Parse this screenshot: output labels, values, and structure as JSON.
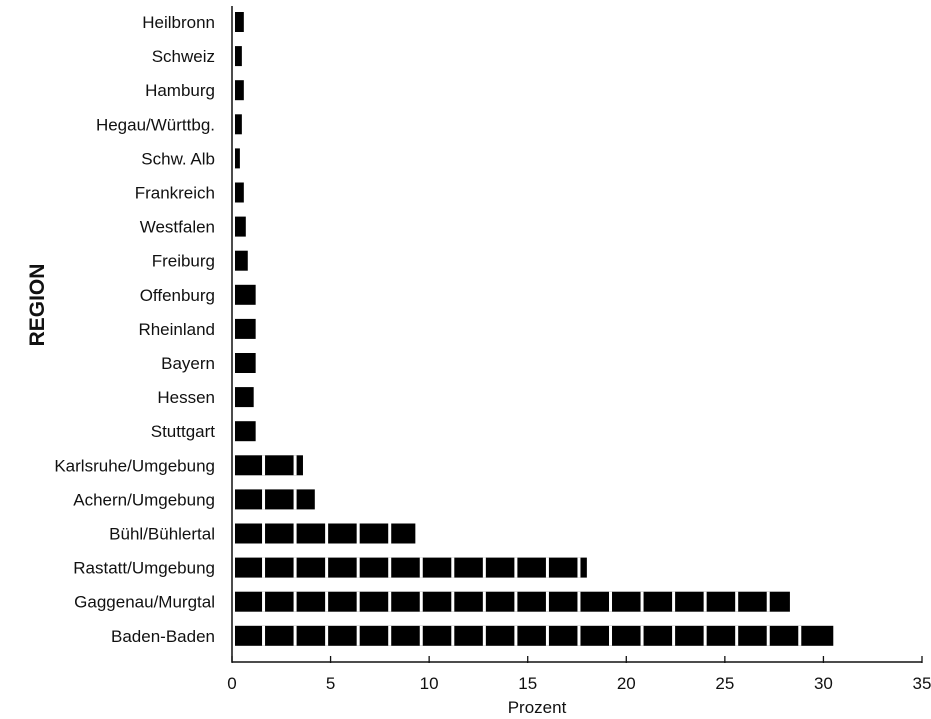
{
  "chart_data": {
    "type": "bar",
    "orientation": "horizontal",
    "categories": [
      "Heilbronn",
      "Schweiz",
      "Hamburg",
      "Hegau/Württbg.",
      "Schw. Alb",
      "Frankreich",
      "Westfalen",
      "Freiburg",
      "Offenburg",
      "Rheinland",
      "Bayern",
      "Hessen",
      "Stuttgart",
      "Karlsruhe/Umgebung",
      "Achern/Umgebung",
      "Bühl/Bühlertal",
      "Rastatt/Umgebung",
      "Gaggenau/Murgtal",
      "Baden-Baden"
    ],
    "values": [
      0.6,
      0.5,
      0.6,
      0.5,
      0.4,
      0.6,
      0.7,
      0.8,
      1.2,
      1.2,
      1.2,
      1.1,
      1.2,
      3.6,
      4.2,
      9.3,
      18.0,
      28.3,
      30.5
    ],
    "xlabel": "Prozent",
    "ylabel": "REGION",
    "xlim": [
      0,
      35
    ],
    "xticks": [
      "0",
      "5",
      "10",
      "15",
      "20",
      "25",
      "30",
      "35"
    ],
    "bar_color": "#000000",
    "grid": false,
    "legend": "none"
  }
}
